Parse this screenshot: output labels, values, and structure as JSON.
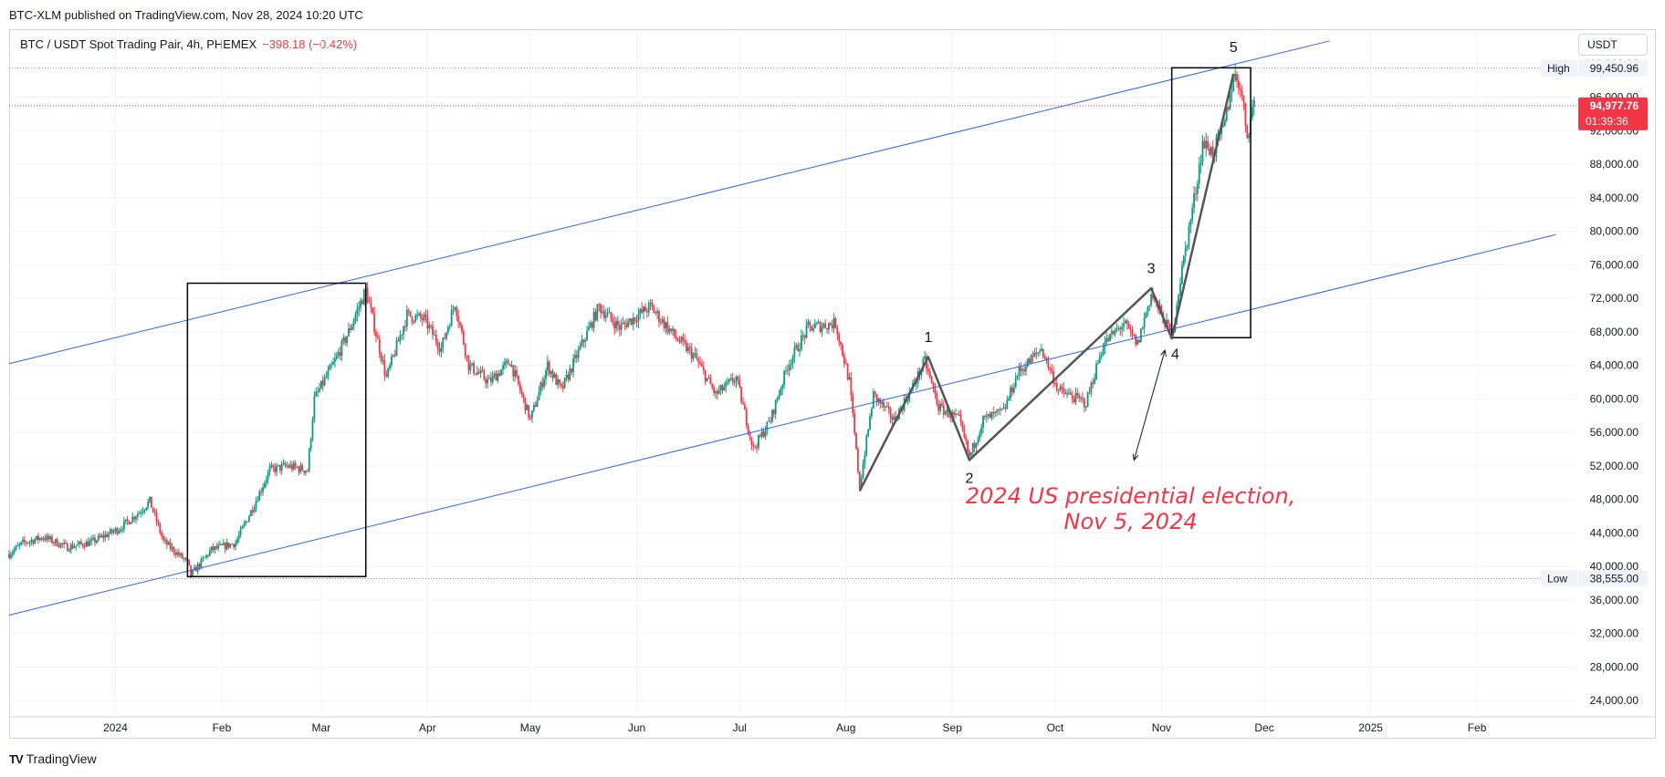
{
  "header": {
    "published": "BTC-XLM published on TradingView.com, Nov 28, 2024 10:20 UTC",
    "symbol": "BTC / USDT Spot Trading Pair, 4h, PHEMEX",
    "change": "−398.18 (−0.42%)",
    "currency": "USDT"
  },
  "footer": {
    "logo_mark": "TV",
    "logo_text": "TradingView"
  },
  "colors": {
    "up": "#089981",
    "down": "#f23645",
    "channel": "#2962ff",
    "wave": "#555555",
    "annotation": "#f23645"
  },
  "chart_data": {
    "type": "candlestick",
    "timeframe": "4h",
    "x_range": [
      "2023-12-01",
      "2025-03-02"
    ],
    "y_range": [
      22500,
      104000
    ],
    "y_ticks": [
      {
        "value": 24000,
        "label": "24,000.00"
      },
      {
        "value": 28000,
        "label": "28,000.00"
      },
      {
        "value": 32000,
        "label": "32,000.00"
      },
      {
        "value": 36000,
        "label": "36,000.00"
      },
      {
        "value": 40000,
        "label": "40,000.00"
      },
      {
        "value": 44000,
        "label": "44,000.00"
      },
      {
        "value": 48000,
        "label": "48,000.00"
      },
      {
        "value": 52000,
        "label": "52,000.00"
      },
      {
        "value": 56000,
        "label": "56,000.00"
      },
      {
        "value": 60000,
        "label": "60,000.00"
      },
      {
        "value": 64000,
        "label": "64,000.00"
      },
      {
        "value": 68000,
        "label": "68,000.00"
      },
      {
        "value": 72000,
        "label": "72,000.00"
      },
      {
        "value": 76000,
        "label": "76,000.00"
      },
      {
        "value": 80000,
        "label": "80,000.00"
      },
      {
        "value": 84000,
        "label": "84,000.00"
      },
      {
        "value": 88000,
        "label": "88,000.00"
      },
      {
        "value": 92000,
        "label": "92,000.00"
      },
      {
        "value": 96000,
        "label": "96,000.00"
      },
      {
        "value": 100000,
        "label": "100,000.00"
      }
    ],
    "x_ticks": [
      {
        "date": "2024-01-01",
        "label": "2024"
      },
      {
        "date": "2024-02-01",
        "label": "Feb"
      },
      {
        "date": "2024-03-01",
        "label": "Mar"
      },
      {
        "date": "2024-04-01",
        "label": "Apr"
      },
      {
        "date": "2024-05-01",
        "label": "May"
      },
      {
        "date": "2024-06-01",
        "label": "Jun"
      },
      {
        "date": "2024-07-01",
        "label": "Jul"
      },
      {
        "date": "2024-08-01",
        "label": "Aug"
      },
      {
        "date": "2024-09-01",
        "label": "Sep"
      },
      {
        "date": "2024-10-01",
        "label": "Oct"
      },
      {
        "date": "2024-11-01",
        "label": "Nov"
      },
      {
        "date": "2024-12-01",
        "label": "Dec"
      },
      {
        "date": "2025-01-01",
        "label": "2025"
      },
      {
        "date": "2025-02-01",
        "label": "Feb"
      }
    ],
    "price_path": [
      [
        "2023-12-01",
        41500
      ],
      [
        "2023-12-05",
        42800
      ],
      [
        "2023-12-11",
        43500
      ],
      [
        "2023-12-18",
        42300
      ],
      [
        "2023-12-25",
        42900
      ],
      [
        "2024-01-02",
        44500
      ],
      [
        "2024-01-08",
        46500
      ],
      [
        "2024-01-11",
        47800
      ],
      [
        "2024-01-15",
        43000
      ],
      [
        "2024-01-22",
        40500
      ],
      [
        "2024-01-23",
        39000
      ],
      [
        "2024-01-29",
        42000
      ],
      [
        "2024-02-05",
        42800
      ],
      [
        "2024-02-10",
        47000
      ],
      [
        "2024-02-15",
        51500
      ],
      [
        "2024-02-20",
        52000
      ],
      [
        "2024-02-26",
        51500
      ],
      [
        "2024-02-28",
        60000
      ],
      [
        "2024-03-05",
        64500
      ],
      [
        "2024-03-09",
        68000
      ],
      [
        "2024-03-14",
        73000
      ],
      [
        "2024-03-20",
        62500
      ],
      [
        "2024-03-26",
        70000
      ],
      [
        "2024-03-31",
        69500
      ],
      [
        "2024-04-05",
        66000
      ],
      [
        "2024-04-09",
        71500
      ],
      [
        "2024-04-13",
        64000
      ],
      [
        "2024-04-19",
        62000
      ],
      [
        "2024-04-25",
        64500
      ],
      [
        "2024-05-01",
        57500
      ],
      [
        "2024-05-06",
        64000
      ],
      [
        "2024-05-10",
        61000
      ],
      [
        "2024-05-16",
        66500
      ],
      [
        "2024-05-21",
        71000
      ],
      [
        "2024-05-27",
        68500
      ],
      [
        "2024-06-05",
        71000
      ],
      [
        "2024-06-12",
        67500
      ],
      [
        "2024-06-18",
        65000
      ],
      [
        "2024-06-24",
        60500
      ],
      [
        "2024-06-30",
        62500
      ],
      [
        "2024-07-05",
        54000
      ],
      [
        "2024-07-10",
        57500
      ],
      [
        "2024-07-15",
        64000
      ],
      [
        "2024-07-21",
        68500
      ],
      [
        "2024-07-29",
        69000
      ],
      [
        "2024-08-02",
        62000
      ],
      [
        "2024-08-05",
        49500
      ],
      [
        "2024-08-09",
        60500
      ],
      [
        "2024-08-15",
        57500
      ],
      [
        "2024-08-20",
        61000
      ],
      [
        "2024-08-24",
        64500
      ],
      [
        "2024-08-28",
        59000
      ],
      [
        "2024-09-03",
        57500
      ],
      [
        "2024-09-06",
        53000
      ],
      [
        "2024-09-10",
        57500
      ],
      [
        "2024-09-16",
        58500
      ],
      [
        "2024-09-20",
        63000
      ],
      [
        "2024-09-27",
        66000
      ],
      [
        "2024-10-02",
        61000
      ],
      [
        "2024-10-10",
        59500
      ],
      [
        "2024-10-15",
        66500
      ],
      [
        "2024-10-21",
        69000
      ],
      [
        "2024-10-25",
        66500
      ],
      [
        "2024-10-29",
        72500
      ],
      [
        "2024-11-04",
        67500
      ],
      [
        "2024-11-07",
        75500
      ],
      [
        "2024-11-11",
        85000
      ],
      [
        "2024-11-13",
        90500
      ],
      [
        "2024-11-16",
        89500
      ],
      [
        "2024-11-19",
        92000
      ],
      [
        "2024-11-22",
        98500
      ],
      [
        "2024-11-24",
        97500
      ],
      [
        "2024-11-26",
        91500
      ],
      [
        "2024-11-28",
        95500
      ]
    ],
    "channel_lines": [
      {
        "from": [
          "2023-12-01",
          64200
        ],
        "to": [
          "2024-12-20",
          102700
        ]
      },
      {
        "from": [
          "2023-12-01",
          34200
        ],
        "to": [
          "2025-02-24",
          79600
        ]
      }
    ],
    "rectangles": [
      {
        "from": [
          "2024-01-22",
          73800
        ],
        "to": [
          "2024-03-14",
          38800
        ]
      },
      {
        "from": [
          "2024-11-04",
          99500
        ],
        "to": [
          "2024-11-27",
          67300
        ]
      }
    ],
    "wave_path": [
      [
        "2024-08-05",
        49000
      ],
      [
        "2024-08-25",
        65000
      ],
      [
        "2024-09-06",
        52700
      ],
      [
        "2024-10-29",
        73200
      ],
      [
        "2024-11-04",
        67200
      ],
      [
        "2024-11-22",
        98800
      ]
    ],
    "wave_labels": [
      {
        "text": "1",
        "date": "2024-08-25",
        "price": 66800
      },
      {
        "text": "2",
        "date": "2024-09-06",
        "price": 50000
      },
      {
        "text": "3",
        "date": "2024-10-29",
        "price": 75000
      },
      {
        "text": "4",
        "date": "2024-11-05",
        "price": 64800
      },
      {
        "text": "5",
        "date": "2024-11-22",
        "price": 101400
      }
    ],
    "arrow": {
      "from": [
        "2024-10-24",
        52700
      ],
      "to": [
        "2024-11-02",
        65800
      ]
    },
    "annotation": {
      "lines": [
        "2024 US presidential election,",
        "Nov 5, 2024"
      ],
      "date": "2024-10-23",
      "price": 47500
    },
    "price_markers": [
      {
        "label": "High",
        "value": 99450.96,
        "value_text": "99,450.96",
        "style": "neutral"
      },
      {
        "label": "Low",
        "value": 38555.0,
        "value_text": "38,555.00",
        "style": "neutral"
      }
    ],
    "last_price": {
      "value": 94977.76,
      "value_text": "94,977.76",
      "countdown": "01:39:36"
    }
  }
}
